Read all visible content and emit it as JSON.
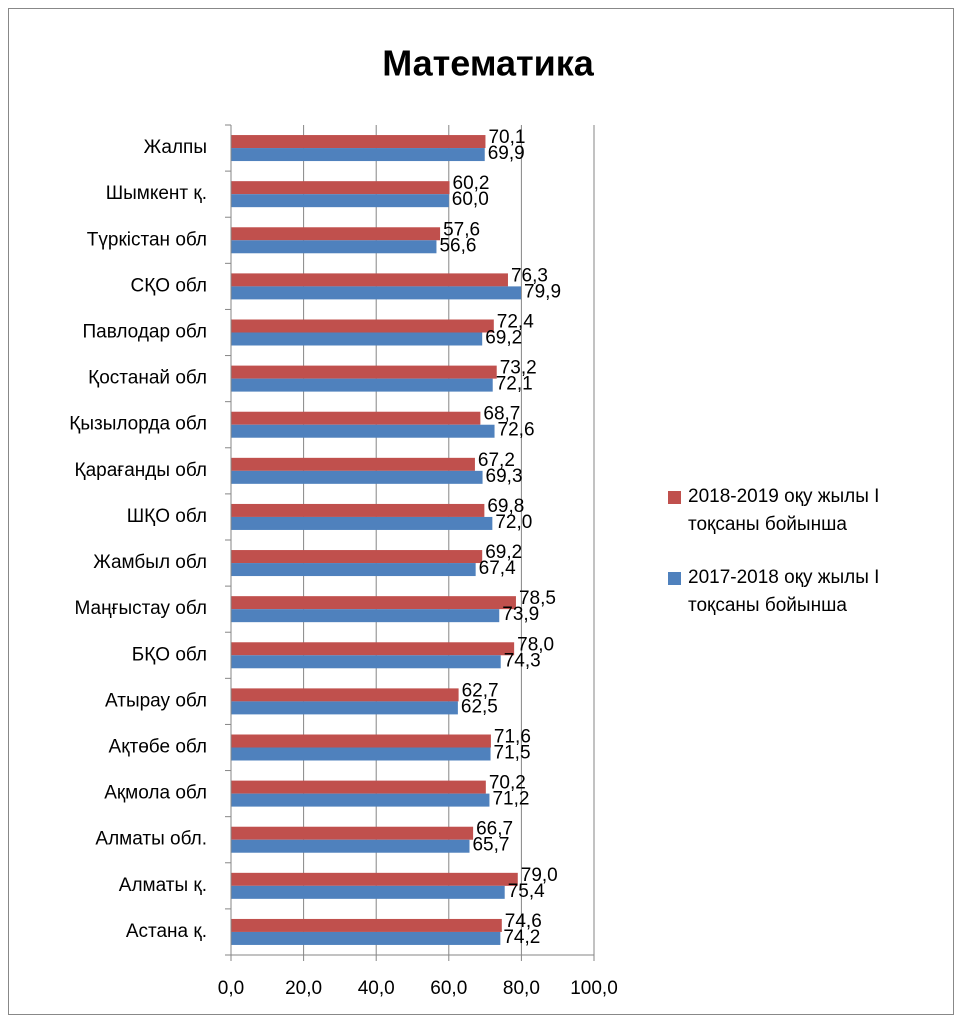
{
  "chart_data": {
    "type": "bar",
    "orientation": "horizontal",
    "title": "Математика",
    "categories": [
      "Жалпы",
      "Шымкент қ.",
      "Түркістан обл",
      "СҚО обл",
      "Павлодар обл",
      "Қостанай обл",
      "Қызылорда обл",
      "Қарағанды обл",
      "ШҚО обл",
      "Жамбыл обл",
      "Маңғыстау обл",
      "БҚО обл",
      "Атырау обл",
      "Ақтөбе обл",
      "Ақмола обл",
      "Алматы обл.",
      "Алматы қ.",
      "Астана қ."
    ],
    "series": [
      {
        "name": "2018-2019 оқу жылы  І тоқсаны бойынша",
        "color": "#c0504d",
        "values": [
          70.1,
          60.2,
          57.6,
          76.3,
          72.4,
          73.2,
          68.7,
          67.2,
          69.8,
          69.2,
          78.5,
          78.0,
          62.7,
          71.6,
          70.2,
          66.7,
          79.0,
          74.6
        ],
        "value_labels": [
          "70,1",
          "60,2",
          "57,6",
          "76,3",
          "72,4",
          "73,2",
          "68,7",
          "67,2",
          "69,8",
          "69,2",
          "78,5",
          "78,0",
          "62,7",
          "71,6",
          "70,2",
          "66,7",
          "79,0",
          "74,6"
        ]
      },
      {
        "name": "2017-2018 оқу жылы  І тоқсаны бойынша",
        "color": "#4f81bd",
        "values": [
          69.9,
          60.0,
          56.6,
          79.9,
          69.2,
          72.1,
          72.6,
          69.3,
          72.0,
          67.4,
          73.9,
          74.3,
          62.5,
          71.5,
          71.2,
          65.7,
          75.4,
          74.2
        ],
        "value_labels": [
          "69,9",
          "60,0",
          "56,6",
          "79,9",
          "69,2",
          "72,1",
          "72,6",
          "69,3",
          "72,0",
          "67,4",
          "73,9",
          "74,3",
          "62,5",
          "71,5",
          "71,2",
          "65,7",
          "75,4",
          "74,2"
        ]
      }
    ],
    "xlim": [
      0,
      100
    ],
    "xticks": [
      {
        "value": 0,
        "label": "0,0"
      },
      {
        "value": 20,
        "label": "20,0"
      },
      {
        "value": 40,
        "label": "40,0"
      },
      {
        "value": 60,
        "label": "60,0"
      },
      {
        "value": 80,
        "label": "80,0"
      },
      {
        "value": 100,
        "label": "100,0"
      }
    ],
    "grid": true,
    "legend": "right"
  }
}
